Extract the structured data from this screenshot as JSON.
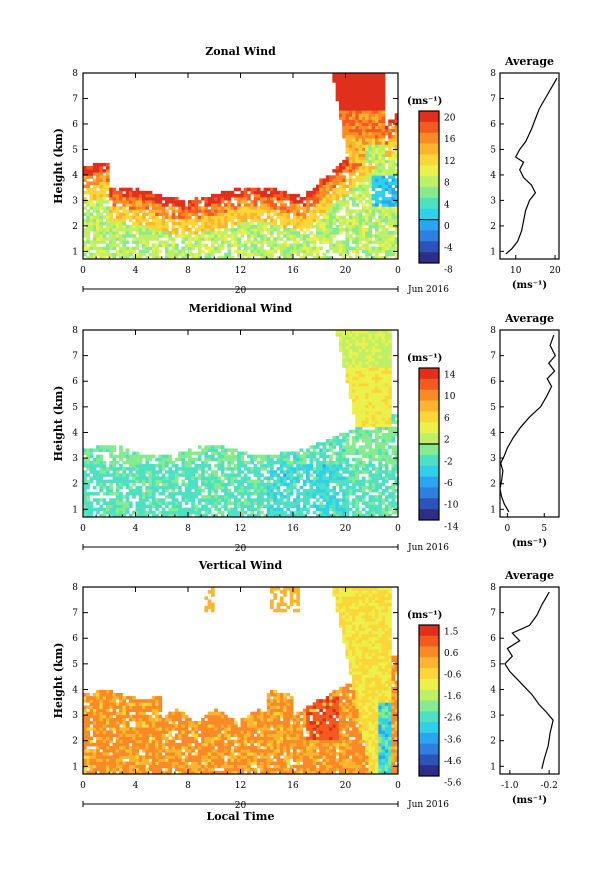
{
  "figure": {
    "xaxis": {
      "ticks": [
        "0",
        "4",
        "8",
        "12",
        "16",
        "20",
        "0"
      ],
      "date_label": "20",
      "month_label": "Jun 2016",
      "label": "Local Time"
    },
    "yaxis_label": "Height (km)",
    "unit_label": "(ms⁻¹)"
  },
  "chart_data": [
    {
      "type": "heatmap",
      "title": "Zonal Wind",
      "xlabel": "",
      "ylabel": "Height (km)",
      "xlim": [
        0,
        24
      ],
      "ylim": [
        0.7,
        8
      ],
      "y_ticks": [
        1,
        2,
        3,
        4,
        5,
        6,
        7,
        8
      ],
      "colorbar": {
        "label": "(ms⁻¹)",
        "ticks": [
          "20",
          "16",
          "12",
          "8",
          "4",
          "0",
          "-4",
          "-8"
        ],
        "vmin": -8,
        "vmax": 20,
        "zero_line": 0
      },
      "average_profile": {
        "title": "Average",
        "xlabel": "(ms⁻¹)",
        "x_ticks": [
          "10",
          "20"
        ],
        "xlim": [
          6,
          21
        ],
        "profile": [
          {
            "x": 7.5,
            "y": 0.9
          },
          {
            "x": 9,
            "y": 1.1
          },
          {
            "x": 10.5,
            "y": 1.4
          },
          {
            "x": 11.5,
            "y": 1.8
          },
          {
            "x": 12,
            "y": 2.2
          },
          {
            "x": 12.5,
            "y": 2.6
          },
          {
            "x": 13.5,
            "y": 3.0
          },
          {
            "x": 15,
            "y": 3.3
          },
          {
            "x": 14,
            "y": 3.6
          },
          {
            "x": 12,
            "y": 3.9
          },
          {
            "x": 11,
            "y": 4.2
          },
          {
            "x": 12,
            "y": 4.5
          },
          {
            "x": 10,
            "y": 4.7
          },
          {
            "x": 11,
            "y": 5.0
          },
          {
            "x": 12.5,
            "y": 5.3
          },
          {
            "x": 14,
            "y": 5.8
          },
          {
            "x": 15,
            "y": 6.2
          },
          {
            "x": 16,
            "y": 6.6
          },
          {
            "x": 17.5,
            "y": 7.0
          },
          {
            "x": 19,
            "y": 7.4
          },
          {
            "x": 20.5,
            "y": 7.8
          }
        ]
      }
    },
    {
      "type": "heatmap",
      "title": "Meridional Wind",
      "xlabel": "",
      "ylabel": "Height (km)",
      "xlim": [
        0,
        24
      ],
      "ylim": [
        0.7,
        8
      ],
      "y_ticks": [
        1,
        2,
        3,
        4,
        5,
        6,
        7,
        8
      ],
      "colorbar": {
        "label": "(ms⁻¹)",
        "ticks": [
          "14",
          "10",
          "6",
          "2",
          "-2",
          "-6",
          "-10",
          "-14"
        ],
        "vmin": -16,
        "vmax": 16,
        "zero_line": 0
      },
      "average_profile": {
        "title": "Average",
        "xlabel": "(ms⁻¹)",
        "x_ticks": [
          "0",
          "5"
        ],
        "xlim": [
          -1,
          7
        ],
        "profile": [
          {
            "x": 0.2,
            "y": 0.9
          },
          {
            "x": -0.4,
            "y": 1.2
          },
          {
            "x": -0.8,
            "y": 1.5
          },
          {
            "x": -1.0,
            "y": 1.8
          },
          {
            "x": -0.8,
            "y": 2.1
          },
          {
            "x": -0.6,
            "y": 2.5
          },
          {
            "x": -0.9,
            "y": 2.8
          },
          {
            "x": -0.4,
            "y": 3.1
          },
          {
            "x": 0.0,
            "y": 3.4
          },
          {
            "x": 0.8,
            "y": 3.8
          },
          {
            "x": 1.8,
            "y": 4.2
          },
          {
            "x": 3.0,
            "y": 4.6
          },
          {
            "x": 4.5,
            "y": 5.0
          },
          {
            "x": 5.3,
            "y": 5.4
          },
          {
            "x": 6.0,
            "y": 5.8
          },
          {
            "x": 5.4,
            "y": 6.1
          },
          {
            "x": 6.4,
            "y": 6.4
          },
          {
            "x": 5.6,
            "y": 6.7
          },
          {
            "x": 6.5,
            "y": 7.0
          },
          {
            "x": 5.8,
            "y": 7.4
          },
          {
            "x": 6.3,
            "y": 7.8
          }
        ]
      }
    },
    {
      "type": "heatmap",
      "title": "Vertical Wind",
      "xlabel": "Local Time",
      "ylabel": "Height (km)",
      "xlim": [
        0,
        24
      ],
      "ylim": [
        0.7,
        8
      ],
      "y_ticks": [
        1,
        2,
        3,
        4,
        5,
        6,
        7,
        8
      ],
      "colorbar": {
        "label": "(ms⁻¹)",
        "ticks": [
          "1.5",
          "0.6",
          "-0.6",
          "-1.6",
          "-2.6",
          "-3.6",
          "-4.6",
          "-5.6"
        ],
        "vmin": -6.0,
        "vmax": 2.0
      },
      "average_profile": {
        "title": "Average",
        "xlabel": "(ms⁻¹)",
        "x_ticks": [
          "-1.0",
          "-0.2"
        ],
        "xlim": [
          -1.2,
          0.0
        ],
        "profile": [
          {
            "x": -0.35,
            "y": 0.9
          },
          {
            "x": -0.3,
            "y": 1.3
          },
          {
            "x": -0.22,
            "y": 1.8
          },
          {
            "x": -0.18,
            "y": 2.3
          },
          {
            "x": -0.12,
            "y": 2.8
          },
          {
            "x": -0.25,
            "y": 3.1
          },
          {
            "x": -0.4,
            "y": 3.4
          },
          {
            "x": -0.55,
            "y": 3.8
          },
          {
            "x": -0.7,
            "y": 4.1
          },
          {
            "x": -0.85,
            "y": 4.4
          },
          {
            "x": -1.0,
            "y": 4.7
          },
          {
            "x": -1.1,
            "y": 5.0
          },
          {
            "x": -0.95,
            "y": 5.3
          },
          {
            "x": -1.05,
            "y": 5.6
          },
          {
            "x": -0.8,
            "y": 5.9
          },
          {
            "x": -0.95,
            "y": 6.2
          },
          {
            "x": -0.6,
            "y": 6.5
          },
          {
            "x": -0.45,
            "y": 6.9
          },
          {
            "x": -0.35,
            "y": 7.3
          },
          {
            "x": -0.2,
            "y": 7.8
          }
        ]
      }
    }
  ]
}
